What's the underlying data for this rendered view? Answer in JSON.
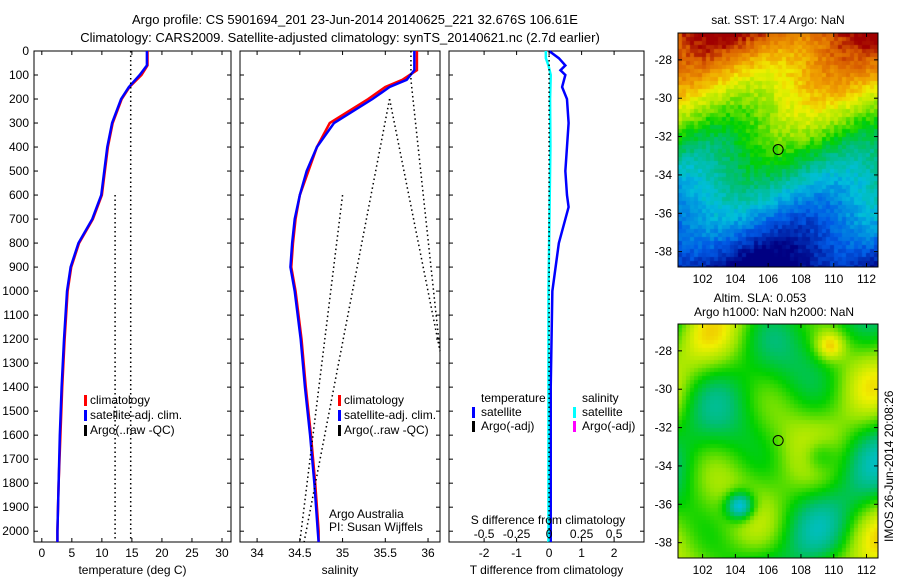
{
  "title_line1": "Argo profile: CS 5901694_201 23-Jun-2014 20140625_221 32.676S 106.61E",
  "title_line2": "Climatology: CARS2009. Satellite-adjusted climatology: synTS_20140621.nc (2.7d earlier)",
  "footer_credit": "IMOS 26-Jun-2014 20:08:26",
  "chart_data": [
    {
      "type": "line",
      "id": "temperature",
      "xlabel": "temperature (deg C)",
      "ylabel": "",
      "xlim": [
        -1.3,
        31.5
      ],
      "ylim": [
        2045,
        0
      ],
      "xticks": [
        0,
        5,
        10,
        15,
        20,
        25,
        30
      ],
      "yticks": [
        0,
        100,
        200,
        300,
        400,
        500,
        600,
        700,
        800,
        900,
        1000,
        1100,
        1200,
        1300,
        1400,
        1500,
        1600,
        1700,
        1800,
        1900,
        2000
      ],
      "legend": [
        "climatology",
        "satellite-adj. clim.",
        "Argo(..raw -QC)"
      ],
      "legend_position": "center-left",
      "series": [
        {
          "name": "climatology",
          "color": "#ff0000",
          "depth": [
            0,
            60,
            100,
            150,
            200,
            300,
            400,
            500,
            600,
            700,
            800,
            900,
            1000,
            1200,
            1400,
            1600,
            1800,
            2000,
            2045
          ],
          "values": [
            17.6,
            17.6,
            16.6,
            14.6,
            13.3,
            11.8,
            11.0,
            10.5,
            10.0,
            8.5,
            6.2,
            4.9,
            4.3,
            3.8,
            3.4,
            3.1,
            2.8,
            2.6,
            2.6
          ]
        },
        {
          "name": "satellite-adj. clim.",
          "color": "#0000ff",
          "depth": [
            0,
            60,
            100,
            150,
            200,
            300,
            400,
            500,
            600,
            700,
            800,
            900,
            1000,
            1200,
            1400,
            1600,
            1800,
            2000,
            2045
          ],
          "values": [
            17.5,
            17.5,
            16.3,
            14.5,
            13.2,
            11.7,
            10.9,
            10.4,
            9.9,
            8.4,
            6.1,
            4.8,
            4.2,
            3.7,
            3.3,
            3.0,
            2.8,
            2.6,
            2.6
          ]
        },
        {
          "name": "Argo(..raw -QC)",
          "color": "#000000",
          "dotted": true,
          "depth": [
            0,
            2045
          ],
          "values": [
            14.8,
            14.8
          ]
        },
        {
          "name": "Argo(..raw -QC) b",
          "color": "#000000",
          "dotted": true,
          "depth": [
            600,
            2045
          ],
          "values": [
            12.2,
            12.2
          ]
        }
      ]
    },
    {
      "type": "line",
      "id": "salinity",
      "xlabel": "salinity",
      "xlim": [
        33.8,
        36.14
      ],
      "ylim": [
        2045,
        0
      ],
      "xticks": [
        34,
        34.5,
        35,
        35.5,
        36
      ],
      "legend": [
        "climatology",
        "satellite-adj. clim.",
        "Argo(..raw -QC)"
      ],
      "legend_position": "center-right",
      "annotation": [
        "Argo Australia",
        "PI: Susan Wijffels"
      ],
      "series": [
        {
          "name": "climatology",
          "color": "#ff0000",
          "depth": [
            0,
            80,
            120,
            150,
            200,
            300,
            400,
            500,
            600,
            700,
            800,
            900,
            1000,
            1200,
            1400,
            1600,
            1800,
            2000,
            2045
          ],
          "values": [
            35.87,
            35.87,
            35.7,
            35.5,
            35.3,
            34.85,
            34.7,
            34.6,
            34.5,
            34.45,
            34.42,
            34.4,
            34.45,
            34.52,
            34.57,
            34.63,
            34.68,
            34.72,
            34.72
          ]
        },
        {
          "name": "satellite-adj. clim.",
          "color": "#0000ff",
          "depth": [
            0,
            80,
            120,
            150,
            200,
            300,
            400,
            500,
            600,
            700,
            800,
            900,
            1000,
            1200,
            1400,
            1600,
            1800,
            2000,
            2045
          ],
          "values": [
            35.84,
            35.84,
            35.75,
            35.55,
            35.35,
            34.9,
            34.7,
            34.58,
            34.5,
            34.44,
            34.41,
            34.39,
            34.44,
            34.51,
            34.56,
            34.62,
            34.67,
            34.71,
            34.72
          ]
        },
        {
          "name": "Argo(..raw -QC)",
          "color": "#000000",
          "dotted": true,
          "depth": [
            0,
            120,
            1250
          ],
          "values": [
            35.8,
            35.8,
            36.14
          ]
        },
        {
          "name": "Argo(..raw -QC) b",
          "color": "#000000",
          "dotted": true,
          "depth": [
            200,
            1250
          ],
          "values": [
            35.55,
            36.14
          ]
        },
        {
          "name": "Argo(..raw -QC) c",
          "color": "#000000",
          "dotted": true,
          "depth": [
            200,
            2045
          ],
          "values": [
            35.55,
            34.55
          ]
        },
        {
          "name": "Argo(..raw -QC) d",
          "color": "#000000",
          "dotted": true,
          "depth": [
            600,
            2045
          ],
          "values": [
            35.0,
            34.5
          ]
        }
      ]
    },
    {
      "type": "line",
      "id": "difference",
      "xlabel": "T difference from climatology",
      "xlabel_top": "S difference from climatology",
      "xlim": [
        -3.08,
        2.92
      ],
      "ylim": [
        2045,
        0
      ],
      "xticks": [
        -2,
        -1,
        0,
        1,
        2
      ],
      "xticks_secondary": [
        "-0.5",
        "-0.25",
        "0",
        "0.25",
        "0.5"
      ],
      "legend_headers": [
        "temperature",
        "salinity"
      ],
      "legend": [
        {
          "label": "satellite",
          "color": "#0000ff",
          "group": "temperature"
        },
        {
          "label": "Argo(-adj)",
          "color": "#000000",
          "group": "temperature"
        },
        {
          "label": "satellite",
          "color": "#00ffff",
          "group": "salinity"
        },
        {
          "label": "Argo(-adj)",
          "color": "#ff00ff",
          "group": "salinity"
        }
      ],
      "series": [
        {
          "name": "T satellite",
          "color": "#0000ff",
          "depth": [
            0,
            30,
            60,
            80,
            100,
            150,
            200,
            300,
            400,
            500,
            600,
            650,
            700,
            800,
            1000,
            1400,
            2045
          ],
          "values": [
            0.0,
            0.3,
            0.5,
            0.35,
            0.5,
            0.4,
            0.55,
            0.6,
            0.55,
            0.5,
            0.55,
            0.6,
            0.5,
            0.3,
            0.1,
            0.05,
            0.05
          ]
        },
        {
          "name": "S satellite",
          "color": "#00ffff",
          "depth": [
            0,
            30,
            60,
            100,
            200,
            400,
            600,
            800,
            1000,
            1400,
            2045
          ],
          "values": [
            -0.1,
            -0.1,
            -0.02,
            0.05,
            0.03,
            0.04,
            0.02,
            0.0,
            -0.02,
            -0.02,
            -0.02
          ]
        },
        {
          "name": "T Argo",
          "color": "#000000",
          "dotted": true,
          "depth": [
            0,
            2045
          ],
          "values": [
            0.0,
            0.0
          ]
        }
      ]
    },
    {
      "type": "heatmap",
      "id": "sst_map",
      "title": "sat. SST: 17.4 Argo: NaN",
      "xlim": [
        100.5,
        112.7
      ],
      "ylim": [
        -26.6,
        -38.8
      ],
      "xticks": [
        102,
        104,
        106,
        108,
        110,
        112
      ],
      "yticks": [
        -28,
        -30,
        -32,
        -34,
        -36,
        -38
      ],
      "marker": {
        "lon": 106.61,
        "lat": -32.676
      }
    },
    {
      "type": "heatmap",
      "id": "sla_map",
      "title_line1": "Altim. SLA: 0.053",
      "title_line2": "Argo h1000: NaN h2000: NaN",
      "xlim": [
        100.5,
        112.7
      ],
      "ylim": [
        -26.6,
        -38.8
      ],
      "xticks": [
        102,
        104,
        106,
        108,
        110,
        112
      ],
      "yticks": [
        -28,
        -30,
        -32,
        -34,
        -36,
        -38
      ],
      "marker": {
        "lon": 106.61,
        "lat": -32.676
      }
    }
  ]
}
